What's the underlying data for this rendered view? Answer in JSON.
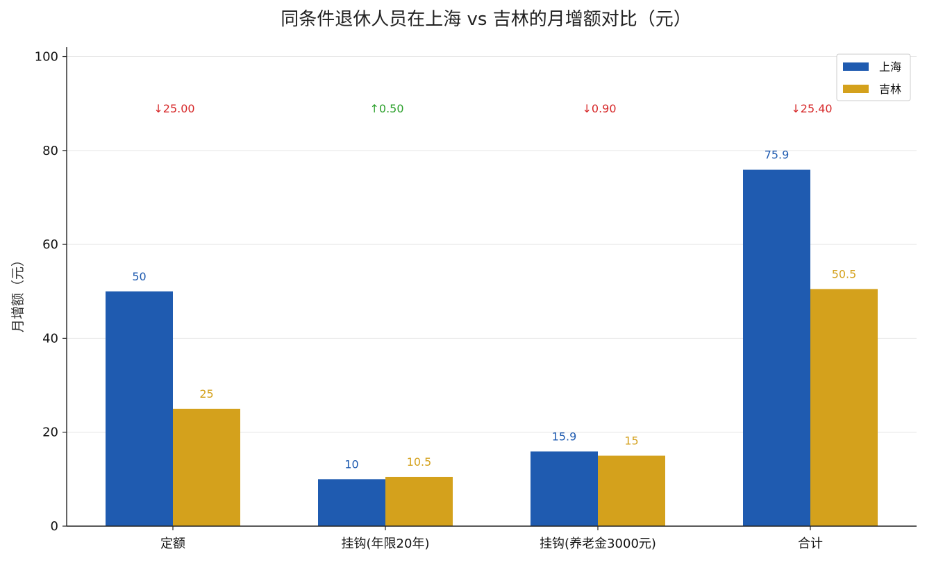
{
  "chart_data": {
    "type": "bar",
    "title": "同条件退休人员在上海 vs 吉林的月增额对比（元）",
    "xlabel": "",
    "ylabel": "月增额（元）",
    "ylim": [
      0,
      102
    ],
    "yticks": [
      0,
      20,
      40,
      60,
      80,
      100
    ],
    "grid": true,
    "legend_position": "top-right",
    "categories": [
      "定额",
      "挂钩(年限20年)",
      "挂钩(养老金3000元)",
      "合计"
    ],
    "series": [
      {
        "name": "上海",
        "color": "#1f5bb0",
        "values": [
          50,
          10,
          15.9,
          75.9
        ],
        "labels": [
          "50",
          "10",
          "15.9",
          "75.9"
        ]
      },
      {
        "name": "吉林",
        "color": "#d4a11c",
        "values": [
          25,
          10.5,
          15,
          50.5
        ],
        "labels": [
          "25",
          "10.5",
          "15",
          "50.5"
        ]
      }
    ],
    "annotations": [
      {
        "text": "↓25.00",
        "color": "#d62728",
        "y": 89
      },
      {
        "text": "↑0.50",
        "color": "#2ca02c",
        "y": 89
      },
      {
        "text": "↓0.90",
        "color": "#d62728",
        "y": 89
      },
      {
        "text": "↓25.40",
        "color": "#d62728",
        "y": 89
      }
    ]
  }
}
